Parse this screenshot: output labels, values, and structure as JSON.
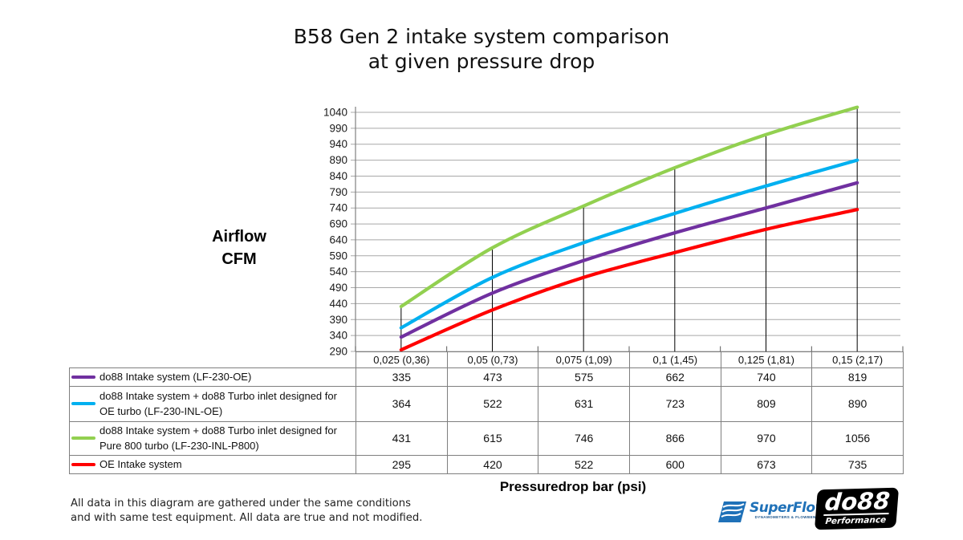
{
  "chart_data": {
    "type": "line",
    "title": "B58 Gen 2 intake system comparison at given pressure drop",
    "title_lines": [
      "B58 Gen 2 intake system comparison",
      "at given pressure drop"
    ],
    "xlabel": "Pressuredrop bar (psi)",
    "ylabel": "Airflow CFM",
    "ylabel_lines": [
      "Airflow",
      "CFM"
    ],
    "categories": [
      "0,025 (0,36)",
      "0,05 (0,73)",
      "0,075 (1,09)",
      "0,1 (1,45)",
      "0,125 (1,81)",
      "0,15 (2,17)"
    ],
    "series": [
      {
        "name": "do88 Intake system (LF-230-OE)",
        "color": "#7030A0",
        "values": [
          335,
          473,
          575,
          662,
          740,
          819
        ]
      },
      {
        "name": "do88 Intake system + do88 Turbo inlet designed for OE turbo (LF-230-INL-OE)",
        "color": "#00B0F0",
        "values": [
          364,
          522,
          631,
          723,
          809,
          890
        ]
      },
      {
        "name": "do88 Intake system + do88 Turbo inlet designed for Pure 800 turbo (LF-230-INL-P800)",
        "color": "#92D050",
        "values": [
          431,
          615,
          746,
          866,
          970,
          1056
        ]
      },
      {
        "name": "OE Intake system",
        "color": "#FF0000",
        "values": [
          295,
          420,
          522,
          600,
          673,
          735
        ]
      }
    ],
    "ylim": [
      290,
      1040
    ],
    "y_step": 50,
    "grid": true,
    "legend_position": "table-below",
    "gridline_color": "#A8A8A8",
    "axis_color": "#808080",
    "droplines_color": "#000000"
  },
  "footnote": {
    "line1": "All data in this diagram are gathered under the same conditions",
    "line2": "and with same test equipment. All data are true and not modified."
  },
  "logos": {
    "superflow": {
      "text": "SuperFlow",
      "tagline": "DYNAMOMETERS & FLOWBENCHES",
      "color": "#1f71b8"
    },
    "do88": {
      "text": "do88",
      "subtext": "Performance"
    }
  }
}
